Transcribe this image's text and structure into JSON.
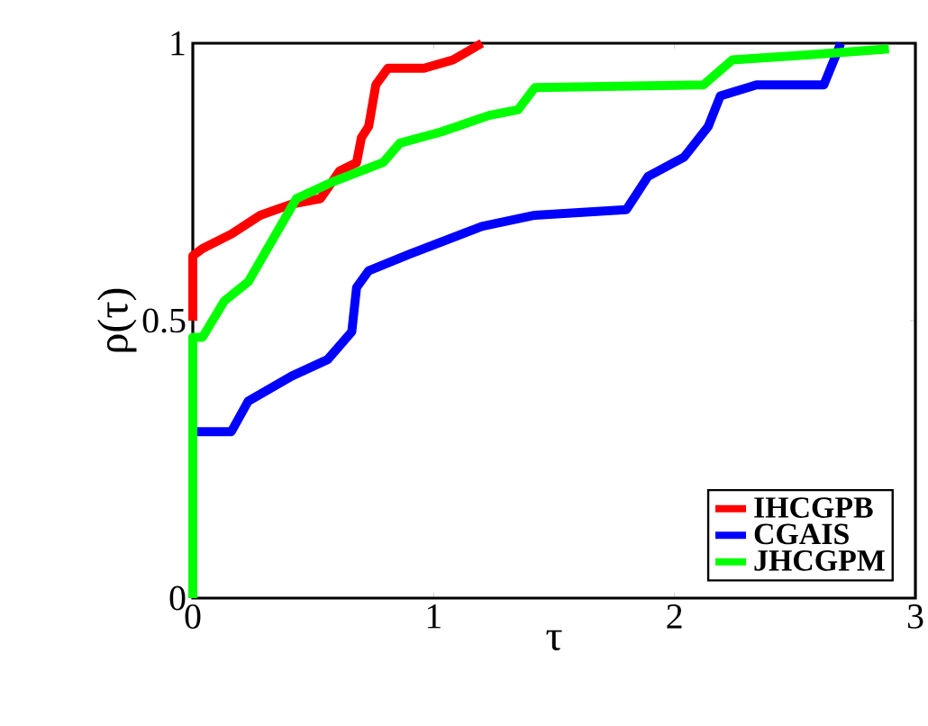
{
  "chart_data": {
    "type": "line",
    "xlabel": "τ",
    "ylabel": "ρ(τ)",
    "xlim": [
      0,
      3
    ],
    "ylim": [
      0,
      1
    ],
    "xticks": [
      0,
      1,
      2,
      3
    ],
    "yticks": [
      0,
      0.5,
      1
    ],
    "legend": "bottom right",
    "line_style": "solid",
    "series": [
      {
        "name": "IHCGPB",
        "color": "#ff0000",
        "x": [
          0,
          0,
          0.04,
          0.16,
          0.28,
          0.41,
          0.53,
          0.61,
          0.68,
          0.7,
          0.73,
          0.76,
          0.81,
          0.96,
          1.08,
          1.2
        ],
        "values": [
          0.5,
          0.617,
          0.63,
          0.656,
          0.69,
          0.71,
          0.72,
          0.77,
          0.785,
          0.83,
          0.85,
          0.925,
          0.955,
          0.955,
          0.97,
          1
        ]
      },
      {
        "name": "CGAIS",
        "color": "#0000ff",
        "x": [
          0,
          0,
          0.16,
          0.23,
          0.41,
          0.56,
          0.66,
          0.68,
          0.73,
          0.9,
          1.2,
          1.42,
          1.8,
          1.89,
          2.04,
          2.14,
          2.19,
          2.34,
          2.62,
          2.69
        ],
        "values": [
          0.3,
          0.3,
          0.3,
          0.355,
          0.4,
          0.43,
          0.48,
          0.56,
          0.59,
          0.62,
          0.67,
          0.69,
          0.7,
          0.76,
          0.795,
          0.85,
          0.905,
          0.925,
          0.925,
          1
        ]
      },
      {
        "name": "JHCGPM",
        "color": "#00ff00",
        "x": [
          0,
          0,
          0.04,
          0.13,
          0.23,
          0.31,
          0.43,
          0.58,
          0.79,
          0.86,
          1.03,
          1.23,
          1.35,
          1.42,
          2.12,
          2.24,
          2.59,
          2.89
        ],
        "values": [
          0,
          0.47,
          0.47,
          0.535,
          0.57,
          0.63,
          0.72,
          0.75,
          0.785,
          0.82,
          0.84,
          0.87,
          0.88,
          0.92,
          0.925,
          0.97,
          0.98,
          0.99
        ]
      }
    ]
  }
}
